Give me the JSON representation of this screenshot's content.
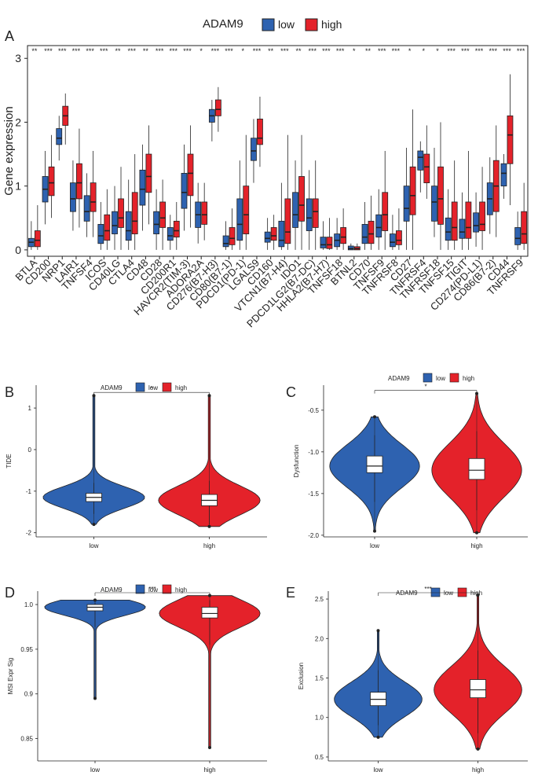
{
  "colors": {
    "low": "#2e62b0",
    "high": "#e4222a",
    "axis": "#222222",
    "box": "#ffffff"
  },
  "chart_data": [
    {
      "panel": "A",
      "type": "box",
      "title": "",
      "legend_title": "ADAM9",
      "legend_labels": [
        "low",
        "high"
      ],
      "ylabel": "Gene expression",
      "xlabel": "",
      "ylim": [
        -0.1,
        3.2
      ],
      "yticks": [
        0,
        1,
        2,
        3
      ],
      "categories": [
        "BTLA",
        "CD200",
        "NRP1",
        "LAIR1",
        "TNFSF4",
        "ICOS",
        "CD40LG",
        "CTLA4",
        "CD48",
        "CD28",
        "CD200R1",
        "HAVCR2(TIM-3)",
        "ADORA2A",
        "CD276(B7-H3)",
        "CD80(B7-1)",
        "PDCD1(PD-1)",
        "LGALS9",
        "CD160",
        "VTCN1(B7-H4)",
        "IDO1",
        "PDCD1LG2(B7-DC)",
        "HHLA2(B7-H7)",
        "TNFSF18",
        "BTNL2",
        "CD70",
        "TNFSF9",
        "TNFRSF8",
        "CD27",
        "TNFRSF4",
        "TNFRSF18",
        "TNFSF15",
        "TIGIT",
        "CD274(PD-L1)",
        "CD86(B7-2)",
        "CD44",
        "TNFRSF9"
      ],
      "significance": [
        "**",
        "***",
        "***",
        "***",
        "***",
        "***",
        "**",
        "***",
        "**",
        "***",
        "***",
        "***",
        "*",
        "***",
        "***",
        "*",
        "***",
        "**",
        "***",
        "**",
        "***",
        "***",
        "***",
        "*",
        "**",
        "***",
        "***",
        "*",
        "*",
        "*",
        "***",
        "***",
        "***",
        "***",
        "***",
        "***"
      ],
      "series": [
        {
          "name": "low",
          "q1": [
            0.05,
            0.75,
            1.65,
            0.6,
            0.45,
            0.1,
            0.25,
            0.15,
            0.7,
            0.25,
            0.15,
            0.65,
            0.35,
            2.0,
            0.05,
            0.15,
            1.4,
            0.12,
            0.05,
            0.35,
            0.3,
            0.03,
            0.05,
            0.0,
            0.1,
            0.2,
            0.05,
            0.45,
            1.25,
            0.45,
            0.15,
            0.18,
            0.28,
            0.55,
            1.0,
            0.08
          ],
          "median": [
            0.12,
            0.95,
            1.75,
            0.8,
            0.6,
            0.22,
            0.38,
            0.3,
            0.95,
            0.4,
            0.22,
            0.9,
            0.55,
            2.1,
            0.1,
            0.4,
            1.55,
            0.18,
            0.15,
            0.55,
            0.5,
            0.08,
            0.15,
            0.02,
            0.2,
            0.35,
            0.12,
            0.65,
            1.45,
            0.75,
            0.28,
            0.28,
            0.38,
            0.8,
            1.2,
            0.18
          ],
          "q3": [
            0.18,
            1.15,
            1.9,
            1.05,
            0.85,
            0.4,
            0.6,
            0.6,
            1.25,
            0.6,
            0.35,
            1.2,
            0.75,
            2.2,
            0.22,
            0.8,
            1.75,
            0.28,
            0.45,
            0.9,
            0.8,
            0.2,
            0.25,
            0.06,
            0.4,
            0.55,
            0.25,
            1.0,
            1.55,
            1.0,
            0.5,
            0.48,
            0.58,
            1.05,
            1.35,
            0.35
          ],
          "lower": [
            0.0,
            0.4,
            1.4,
            0.3,
            0.2,
            0.0,
            0.0,
            0.0,
            0.3,
            0.0,
            0.0,
            0.3,
            0.1,
            1.7,
            0.0,
            0.0,
            1.05,
            0.0,
            0.0,
            0.0,
            0.0,
            0.0,
            0.0,
            0.0,
            0.0,
            0.0,
            0.0,
            0.0,
            0.9,
            0.2,
            0.0,
            0.0,
            0.05,
            0.25,
            0.8,
            0.0
          ],
          "upper": [
            0.45,
            1.55,
            2.1,
            1.4,
            1.2,
            0.75,
            1.0,
            1.1,
            1.65,
            0.95,
            0.55,
            1.65,
            1.05,
            2.35,
            0.45,
            1.4,
            2.05,
            0.5,
            1.05,
            1.4,
            1.25,
            0.45,
            0.5,
            0.1,
            0.75,
            0.95,
            0.55,
            1.6,
            1.7,
            1.6,
            0.95,
            0.9,
            0.9,
            1.45,
            1.5,
            0.6
          ]
        },
        {
          "name": "high",
          "q1": [
            0.05,
            0.85,
            1.95,
            0.8,
            0.6,
            0.15,
            0.35,
            0.25,
            0.9,
            0.35,
            0.2,
            0.85,
            0.4,
            2.1,
            0.08,
            0.25,
            1.65,
            0.15,
            0.1,
            0.45,
            0.35,
            0.02,
            0.1,
            0.0,
            0.1,
            0.3,
            0.08,
            0.55,
            1.05,
            0.4,
            0.15,
            0.18,
            0.3,
            0.6,
            1.35,
            0.1
          ],
          "median": [
            0.15,
            1.05,
            2.1,
            1.05,
            0.75,
            0.3,
            0.5,
            0.45,
            1.15,
            0.5,
            0.3,
            1.2,
            0.55,
            2.2,
            0.18,
            0.55,
            1.75,
            0.22,
            0.28,
            0.7,
            0.6,
            0.08,
            0.2,
            0.02,
            0.25,
            0.55,
            0.15,
            0.85,
            1.3,
            0.8,
            0.35,
            0.35,
            0.4,
            1.0,
            1.8,
            0.25
          ],
          "q3": [
            0.3,
            1.3,
            2.25,
            1.35,
            1.05,
            0.55,
            0.8,
            0.9,
            1.5,
            0.75,
            0.45,
            1.5,
            0.75,
            2.35,
            0.35,
            1.0,
            2.05,
            0.35,
            0.8,
            1.15,
            0.8,
            0.2,
            0.35,
            0.05,
            0.45,
            0.9,
            0.3,
            1.3,
            1.5,
            1.3,
            0.75,
            0.75,
            0.75,
            1.4,
            2.1,
            0.6
          ],
          "lower": [
            0.0,
            0.5,
            1.65,
            0.35,
            0.2,
            0.0,
            0.0,
            0.0,
            0.4,
            0.0,
            0.0,
            0.35,
            0.15,
            1.85,
            0.0,
            0.0,
            1.3,
            0.0,
            0.0,
            0.0,
            0.0,
            0.0,
            0.0,
            0.0,
            0.0,
            0.0,
            0.0,
            0.0,
            0.8,
            0.0,
            0.0,
            0.0,
            0.0,
            0.2,
            0.7,
            0.0
          ],
          "upper": [
            0.7,
            1.8,
            2.45,
            1.9,
            1.55,
            0.95,
            1.3,
            1.5,
            1.95,
            1.1,
            0.75,
            1.95,
            1.05,
            2.55,
            0.65,
            1.8,
            2.4,
            0.55,
            1.8,
            1.8,
            1.4,
            0.5,
            0.65,
            0.1,
            0.85,
            1.55,
            0.65,
            2.2,
            1.95,
            2.0,
            1.4,
            1.55,
            1.3,
            1.95,
            2.75,
            1.05
          ]
        }
      ]
    },
    {
      "panel": "B",
      "type": "violin",
      "legend_title": "ADAM9",
      "legend_labels": [
        "low",
        "high"
      ],
      "ylabel": "TIDE",
      "xlabel": "",
      "categories": [
        "low",
        "high"
      ],
      "ylim": [
        -2.1,
        1.55
      ],
      "yticks": [
        -2,
        -1,
        0,
        1
      ],
      "significance": "*",
      "series": [
        {
          "name": "low",
          "min": -1.8,
          "q1": -1.25,
          "median": -1.15,
          "q3": -1.05,
          "max": 1.3,
          "lower_whisker": -1.55,
          "upper_whisker": -0.8
        },
        {
          "name": "high",
          "min": -1.85,
          "q1": -1.35,
          "median": -1.22,
          "q3": -1.08,
          "max": 1.3,
          "lower_whisker": -1.8,
          "upper_whisker": -0.75
        }
      ]
    },
    {
      "panel": "C",
      "type": "violin",
      "legend_title": "ADAM9",
      "legend_labels": [
        "low",
        "high"
      ],
      "ylabel": "Dysfunction",
      "xlabel": "",
      "categories": [
        "low",
        "high"
      ],
      "ylim": [
        -2.02,
        -0.2
      ],
      "yticks": [
        -2.0,
        -1.5,
        -1.0,
        -0.5
      ],
      "significance": "*",
      "series": [
        {
          "name": "low",
          "min": -1.95,
          "q1": -1.25,
          "median": -1.17,
          "q3": -1.05,
          "max": -0.58,
          "lower_whisker": -1.6,
          "upper_whisker": -0.8
        },
        {
          "name": "high",
          "min": -1.97,
          "q1": -1.33,
          "median": -1.22,
          "q3": -1.08,
          "max": -0.3,
          "lower_whisker": -1.7,
          "upper_whisker": -0.75
        }
      ]
    },
    {
      "panel": "D",
      "type": "violin",
      "legend_title": "ADAM9",
      "legend_labels": [
        "low",
        "high"
      ],
      "ylabel": "MSI Expr Sig",
      "xlabel": "",
      "categories": [
        "low",
        "high"
      ],
      "ylim": [
        0.825,
        1.015
      ],
      "yticks": [
        0.85,
        0.9,
        0.95,
        1.0
      ],
      "significance": "***",
      "series": [
        {
          "name": "low",
          "min": 0.895,
          "q1": 0.993,
          "median": 0.997,
          "q3": 1.0,
          "max": 1.005,
          "lower_whisker": 0.975,
          "upper_whisker": 1.002
        },
        {
          "name": "high",
          "min": 0.84,
          "q1": 0.985,
          "median": 0.99,
          "q3": 0.997,
          "max": 1.01,
          "lower_whisker": 0.955,
          "upper_whisker": 1.005
        }
      ]
    },
    {
      "panel": "E",
      "type": "violin",
      "legend_title": "ADAM9",
      "legend_labels": [
        "low",
        "high"
      ],
      "ylabel": "Exclusion",
      "xlabel": "",
      "categories": [
        "low",
        "high"
      ],
      "ylim": [
        0.45,
        2.6
      ],
      "yticks": [
        0.5,
        1.0,
        1.5,
        2.0,
        2.5
      ],
      "significance": "***",
      "series": [
        {
          "name": "low",
          "min": 0.75,
          "q1": 1.15,
          "median": 1.23,
          "q3": 1.32,
          "max": 2.1,
          "lower_whisker": 0.9,
          "upper_whisker": 1.6
        },
        {
          "name": "high",
          "min": 0.6,
          "q1": 1.25,
          "median": 1.35,
          "q3": 1.48,
          "max": 2.55,
          "lower_whisker": 0.8,
          "upper_whisker": 1.85
        }
      ]
    }
  ]
}
